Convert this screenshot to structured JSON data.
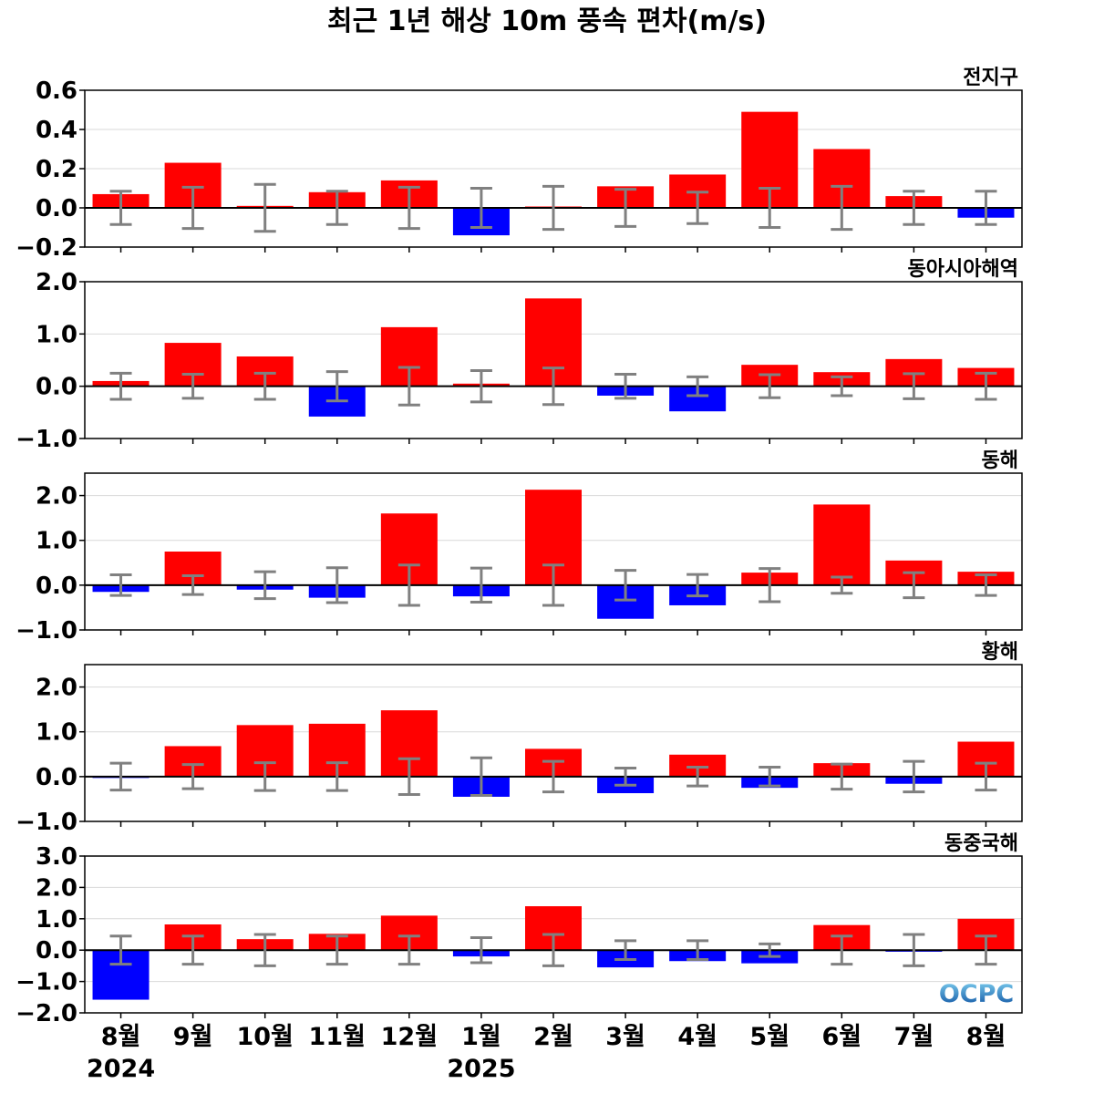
{
  "title": "최근 1년 해상 10m 풍속 편차(m/s)",
  "logo_text": "OCPC",
  "colors": {
    "positive": "#ff0000",
    "negative": "#0000ff",
    "errorbar": "#808080",
    "zero_line": "#000000",
    "grid": "#d9d9d9"
  },
  "chart_data": [
    {
      "type": "bar",
      "panel_label": "전지구",
      "categories": [
        "8월",
        "9월",
        "10월",
        "11월",
        "12월",
        "1월",
        "2월",
        "3월",
        "4월",
        "5월",
        "6월",
        "7월",
        "8월"
      ],
      "values": [
        0.07,
        0.23,
        0.01,
        0.08,
        0.14,
        -0.14,
        0.0,
        0.11,
        0.17,
        0.49,
        0.3,
        0.06,
        -0.05
      ],
      "error_range": [
        0.085,
        0.105,
        0.12,
        0.085,
        0.105,
        0.1,
        0.11,
        0.095,
        0.08,
        0.1,
        0.11,
        0.085,
        0.085
      ],
      "ylim": [
        -0.2,
        0.6
      ],
      "yticks": [
        -0.2,
        0.0,
        0.2,
        0.4,
        0.6
      ],
      "ytick_labels": [
        "−0.2",
        "0.0",
        "0.2",
        "0.4",
        "0.6"
      ],
      "grid": true
    },
    {
      "type": "bar",
      "panel_label": "동아시아해역",
      "categories": [
        "8월",
        "9월",
        "10월",
        "11월",
        "12월",
        "1월",
        "2월",
        "3월",
        "4월",
        "5월",
        "6월",
        "7월",
        "8월"
      ],
      "values": [
        0.1,
        0.83,
        0.57,
        -0.58,
        1.13,
        0.05,
        1.68,
        -0.18,
        -0.48,
        0.41,
        0.27,
        0.52,
        0.35
      ],
      "error_range": [
        0.25,
        0.23,
        0.25,
        0.28,
        0.36,
        0.3,
        0.35,
        0.23,
        0.18,
        0.22,
        0.18,
        0.24,
        0.25
      ],
      "ylim": [
        -1.0,
        2.0
      ],
      "yticks": [
        -1.0,
        0.0,
        1.0,
        2.0
      ],
      "ytick_labels": [
        "−1.0",
        "0.0",
        "1.0",
        "2.0"
      ],
      "grid": true
    },
    {
      "type": "bar",
      "panel_label": "동해",
      "categories": [
        "8월",
        "9월",
        "10월",
        "11월",
        "12월",
        "1월",
        "2월",
        "3월",
        "4월",
        "5월",
        "6월",
        "7월",
        "8월"
      ],
      "values": [
        -0.15,
        0.75,
        -0.1,
        -0.28,
        1.6,
        -0.25,
        2.13,
        -0.75,
        -0.45,
        0.28,
        1.8,
        0.55,
        0.3
      ],
      "error_range": [
        0.23,
        0.21,
        0.3,
        0.39,
        0.45,
        0.38,
        0.45,
        0.33,
        0.24,
        0.37,
        0.18,
        0.28,
        0.23
      ],
      "ylim": [
        -1.0,
        2.5
      ],
      "yticks": [
        -1.0,
        0.0,
        1.0,
        2.0
      ],
      "ytick_labels": [
        "−1.0",
        "0.0",
        "1.0",
        "2.0"
      ],
      "grid": true
    },
    {
      "type": "bar",
      "panel_label": "황해",
      "categories": [
        "8월",
        "9월",
        "10월",
        "11월",
        "12월",
        "1월",
        "2월",
        "3월",
        "4월",
        "5월",
        "6월",
        "7월",
        "8월"
      ],
      "values": [
        -0.02,
        0.68,
        1.15,
        1.18,
        1.48,
        -0.45,
        0.62,
        -0.37,
        0.49,
        -0.25,
        0.3,
        -0.16,
        0.78
      ],
      "error_range": [
        0.3,
        0.27,
        0.31,
        0.31,
        0.4,
        0.42,
        0.34,
        0.19,
        0.21,
        0.21,
        0.28,
        0.34,
        0.3
      ],
      "ylim": [
        -1.0,
        2.5
      ],
      "yticks": [
        -1.0,
        0.0,
        1.0,
        2.0
      ],
      "ytick_labels": [
        "−1.0",
        "0.0",
        "1.0",
        "2.0"
      ],
      "grid": true
    },
    {
      "type": "bar",
      "panel_label": "동중국해",
      "categories": [
        "8월",
        "9월",
        "10월",
        "11월",
        "12월",
        "1월",
        "2월",
        "3월",
        "4월",
        "5월",
        "6월",
        "7월",
        "8월"
      ],
      "values": [
        -1.58,
        0.82,
        0.35,
        0.52,
        1.1,
        -0.2,
        1.4,
        -0.55,
        -0.35,
        -0.42,
        0.8,
        -0.05,
        1.0
      ],
      "error_range": [
        0.45,
        0.45,
        0.5,
        0.45,
        0.45,
        0.4,
        0.5,
        0.3,
        0.3,
        0.2,
        0.45,
        0.5,
        0.45
      ],
      "ylim": [
        -2.0,
        3.0
      ],
      "yticks": [
        -2.0,
        -1.0,
        0.0,
        1.0,
        2.0,
        3.0
      ],
      "ytick_labels": [
        "−2.0",
        "−1.0",
        "0.0",
        "1.0",
        "2.0",
        "3.0"
      ],
      "grid": true
    }
  ],
  "x_axis": {
    "tick_labels": [
      "8월",
      "9월",
      "10월",
      "11월",
      "12월",
      "1월",
      "2월",
      "3월",
      "4월",
      "5월",
      "6월",
      "7월",
      "8월"
    ],
    "year_labels": [
      {
        "text": "2024",
        "index": 0
      },
      {
        "text": "2025",
        "index": 5
      }
    ]
  }
}
